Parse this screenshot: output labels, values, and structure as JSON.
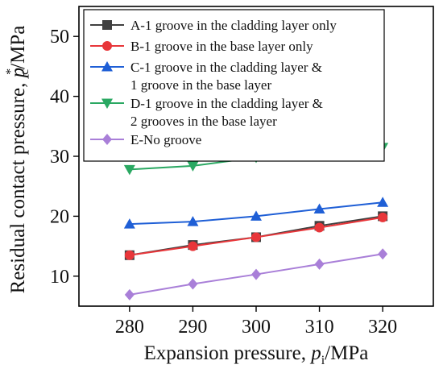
{
  "chart_data": {
    "type": "line",
    "x": [
      280,
      290,
      300,
      310,
      320
    ],
    "xlim": [
      272,
      328
    ],
    "ylim": [
      5,
      55
    ],
    "xticks": [
      280,
      290,
      300,
      310,
      320
    ],
    "yticks": [
      10,
      20,
      30,
      40,
      50
    ],
    "xlabel": {
      "prefix": "Expansion pressure, ",
      "var": "p",
      "sub": "i",
      "unit": "/MPa"
    },
    "ylabel": {
      "prefix": "Residual contact pressure, ",
      "var": "p",
      "sub": "c",
      "sup": "*",
      "unit": "/MPa"
    },
    "grid": false,
    "legend": {
      "placement": "top-left",
      "frame": true
    },
    "series": [
      {
        "name": "A-1 groove in the cladding layer only",
        "color": "#404040",
        "marker": "square",
        "values": [
          13.5,
          15.2,
          16.5,
          18.4,
          20.0
        ]
      },
      {
        "name": "B-1 groove in the base layer only",
        "color": "#e8363a",
        "marker": "circle",
        "values": [
          13.5,
          15.0,
          16.5,
          18.1,
          19.8
        ]
      },
      {
        "name": "C-1 groove in the cladding layer & 1 groove in the base layer",
        "color": "#1f5fd6",
        "marker": "triangle-up",
        "values": [
          18.7,
          19.1,
          20.0,
          21.2,
          22.3
        ]
      },
      {
        "name": "D-1 groove in the cladding layer & 2 grooves in the base layer",
        "color": "#2aa862",
        "marker": "triangle-down",
        "values": [
          27.8,
          28.4,
          29.8,
          30.8,
          31.5
        ]
      },
      {
        "name": "E-No groove",
        "color": "#a97fd8",
        "marker": "diamond",
        "values": [
          6.9,
          8.7,
          10.3,
          12.0,
          13.7
        ]
      }
    ],
    "legend_lines": [
      [
        "A-1 groove in the cladding layer only"
      ],
      [
        "B-1 groove in the base layer only"
      ],
      [
        "C-1 groove in the cladding layer &",
        "1 groove in the base layer"
      ],
      [
        "D-1 groove in the cladding layer &",
        "2 grooves in the base layer"
      ],
      [
        "E-No groove"
      ]
    ]
  }
}
